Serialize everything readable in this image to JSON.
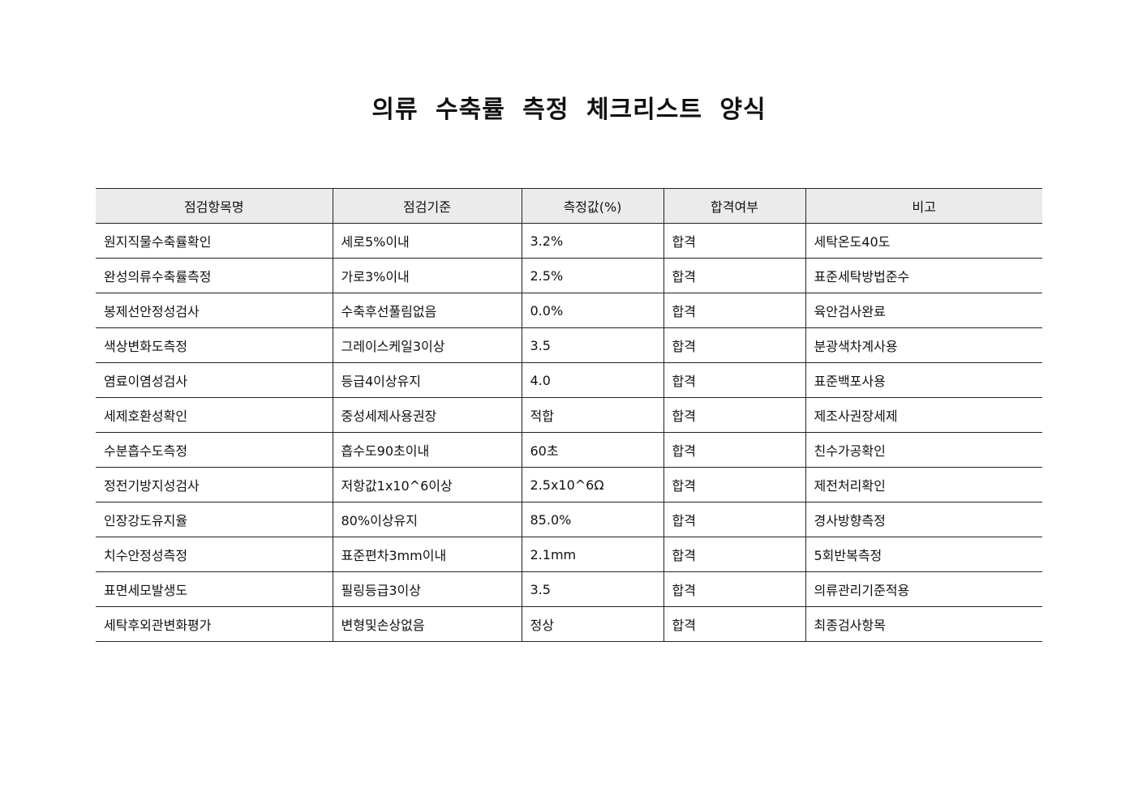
{
  "title": "의류 수축률 측정 체크리스트 양식",
  "table": {
    "headers": [
      "점검항목명",
      "점검기준",
      "측정값(%)",
      "합격여부",
      "비고"
    ],
    "rows": [
      [
        "원지직물수축률확인",
        "세로5%이내",
        "3.2%",
        "합격",
        "세탁온도40도"
      ],
      [
        "완성의류수축률측정",
        "가로3%이내",
        "2.5%",
        "합격",
        "표준세탁방법준수"
      ],
      [
        "봉제선안정성검사",
        "수축후선풀림없음",
        "0.0%",
        "합격",
        "육안검사완료"
      ],
      [
        "색상변화도측정",
        "그레이스케일3이상",
        "3.5",
        "합격",
        "분광색차계사용"
      ],
      [
        "염료이염성검사",
        "등급4이상유지",
        "4.0",
        "합격",
        "표준백포사용"
      ],
      [
        "세제호환성확인",
        "중성세제사용권장",
        "적합",
        "합격",
        "제조사권장세제"
      ],
      [
        "수분흡수도측정",
        "흡수도90초이내",
        "60초",
        "합격",
        "친수가공확인"
      ],
      [
        "정전기방지성검사",
        "저항값1x10^6이상",
        "2.5x10^6Ω",
        "합격",
        "제전처리확인"
      ],
      [
        "인장강도유지율",
        "80%이상유지",
        "85.0%",
        "합격",
        "경사방향측정"
      ],
      [
        "치수안정성측정",
        "표준편차3mm이내",
        "2.1mm",
        "합격",
        "5회반복측정"
      ],
      [
        "표면세모발생도",
        "필링등급3이상",
        "3.5",
        "합격",
        "의류관리기준적용"
      ],
      [
        "세탁후외관변화평가",
        "변형및손상없음",
        "정상",
        "합격",
        "최종검사항목"
      ]
    ]
  }
}
